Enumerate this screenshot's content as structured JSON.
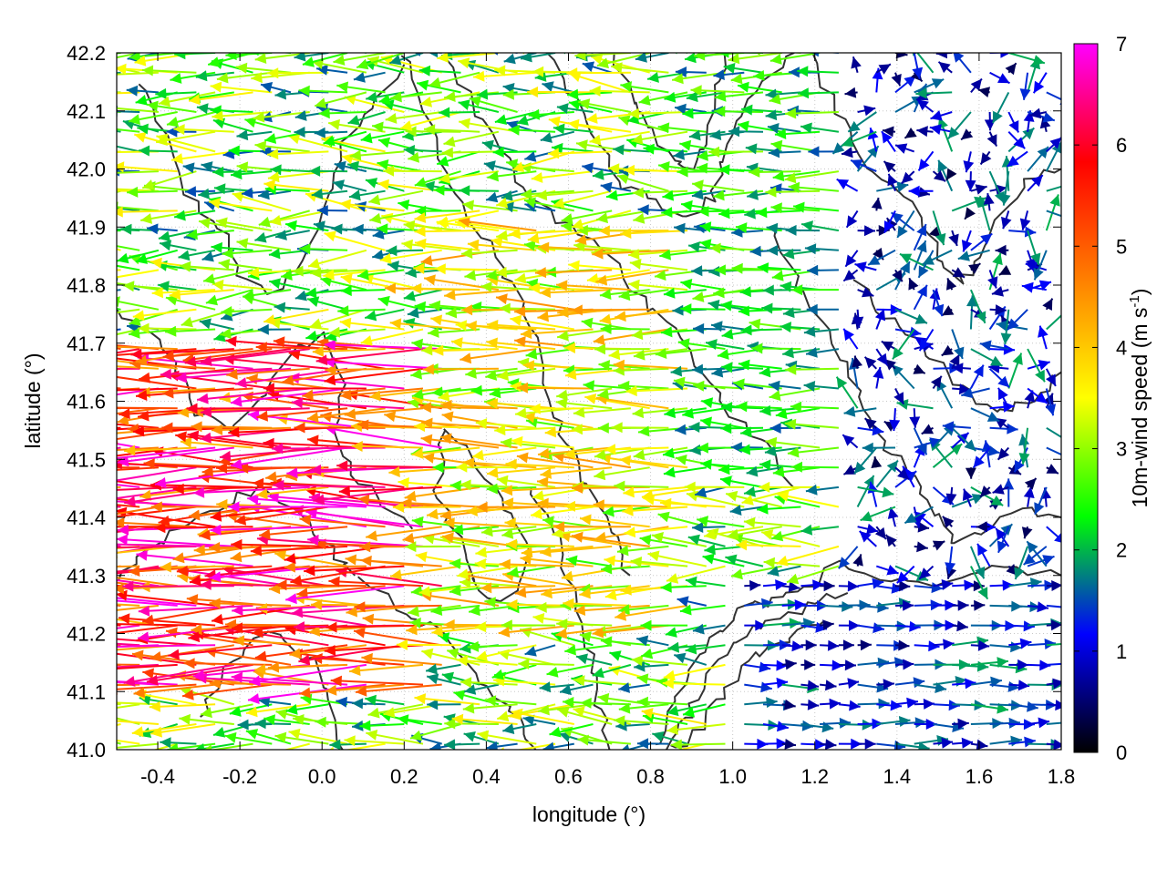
{
  "chart_data": {
    "type": "vector-field",
    "xlabel": "longitude (°)",
    "ylabel": "latitude (°)",
    "xlim": [
      -0.5,
      1.8
    ],
    "ylim": [
      41.0,
      42.2
    ],
    "x_ticks": [
      "-0.4",
      "-0.2",
      "0.0",
      "0.2",
      "0.4",
      "0.6",
      "0.8",
      "1.0",
      "1.2",
      "1.4",
      "1.6",
      "1.8"
    ],
    "y_ticks": [
      "41.0",
      "41.1",
      "41.2",
      "41.3",
      "41.4",
      "41.5",
      "41.6",
      "41.7",
      "41.8",
      "41.9",
      "42.0",
      "42.1",
      "42.2"
    ],
    "grid": true,
    "colorbar": {
      "label_prefix": "10m-wind speed (m s",
      "label_exponent": "-1",
      "label_suffix": ")",
      "range": [
        0,
        7
      ],
      "ticks": [
        "0",
        "1",
        "2",
        "3",
        "4",
        "5",
        "6",
        "7"
      ],
      "colors": [
        "#000000",
        "#0000ff",
        "#00ff00",
        "#ffff00",
        "#ff8000",
        "#ff0000",
        "#ff00ff"
      ]
    },
    "wind_field_regions": [
      {
        "lon": [
          -0.5,
          0.3
        ],
        "lat": [
          41.1,
          41.7
        ],
        "direction": "westward",
        "speed": [
          4,
          7
        ]
      },
      {
        "lon": [
          0.3,
          0.9
        ],
        "lat": [
          41.2,
          41.9
        ],
        "direction": "westward",
        "speed": [
          2.5,
          4.5
        ]
      },
      {
        "lon": [
          0.9,
          1.3
        ],
        "lat": [
          41.5,
          42.2
        ],
        "direction": "westward",
        "speed": [
          1.5,
          3
        ]
      },
      {
        "lon": [
          1.3,
          1.8
        ],
        "lat": [
          41.3,
          42.2
        ],
        "direction": "variable",
        "speed": [
          0.3,
          2
        ]
      },
      {
        "lon": [
          1.0,
          1.8
        ],
        "lat": [
          41.0,
          41.3
        ],
        "direction": "eastward",
        "speed": [
          0.5,
          2
        ]
      }
    ],
    "contours": "terrain elevation lines (dark gray)"
  }
}
